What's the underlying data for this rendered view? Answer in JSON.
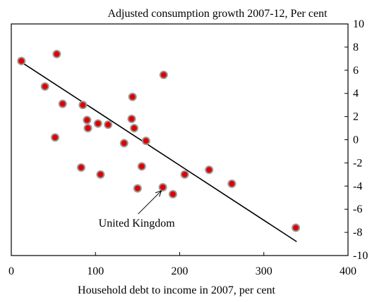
{
  "chart_data": {
    "type": "scatter",
    "title": "",
    "xlabel": "Household debt to income in 2007, per cent",
    "ylabel": "Adjusted consumption growth 2007-12, Per cent",
    "xlim": [
      0,
      400
    ],
    "ylim": [
      -10,
      10
    ],
    "x_ticks": [
      0,
      100,
      200,
      300,
      400
    ],
    "y_ticks": [
      10,
      8,
      6,
      4,
      2,
      0,
      -2,
      -4,
      -6,
      -8,
      -10
    ],
    "y_axis_side": "right",
    "grid": false,
    "legend": "none",
    "marker_fill": "#e00000",
    "marker_stroke": "#999999",
    "trendline": {
      "x": [
        12,
        339
      ],
      "y": [
        6.7,
        -8.8
      ],
      "color": "#000000"
    },
    "points": [
      {
        "x": 12,
        "y": 6.8
      },
      {
        "x": 54,
        "y": 7.4
      },
      {
        "x": 40,
        "y": 4.6
      },
      {
        "x": 61,
        "y": 3.1
      },
      {
        "x": 52,
        "y": 0.2
      },
      {
        "x": 85,
        "y": 3.0
      },
      {
        "x": 90,
        "y": 1.7
      },
      {
        "x": 91,
        "y": 1.0
      },
      {
        "x": 103,
        "y": 1.4
      },
      {
        "x": 115,
        "y": 1.3
      },
      {
        "x": 83,
        "y": -2.4
      },
      {
        "x": 106,
        "y": -3.0
      },
      {
        "x": 134,
        "y": -0.3
      },
      {
        "x": 143,
        "y": 1.8
      },
      {
        "x": 144,
        "y": 3.7
      },
      {
        "x": 146,
        "y": 1.0
      },
      {
        "x": 160,
        "y": -0.1
      },
      {
        "x": 155,
        "y": -2.3
      },
      {
        "x": 150,
        "y": -4.2
      },
      {
        "x": 180,
        "y": -4.1
      },
      {
        "x": 181,
        "y": 5.6
      },
      {
        "x": 192,
        "y": -4.7
      },
      {
        "x": 206,
        "y": -3.0
      },
      {
        "x": 235,
        "y": -2.6
      },
      {
        "x": 262,
        "y": -3.8
      },
      {
        "x": 338,
        "y": -7.6
      }
    ],
    "annotations": [
      {
        "text": "United Kingdom",
        "target": {
          "x": 180,
          "y": -4.1
        },
        "style": "arrow"
      }
    ]
  }
}
